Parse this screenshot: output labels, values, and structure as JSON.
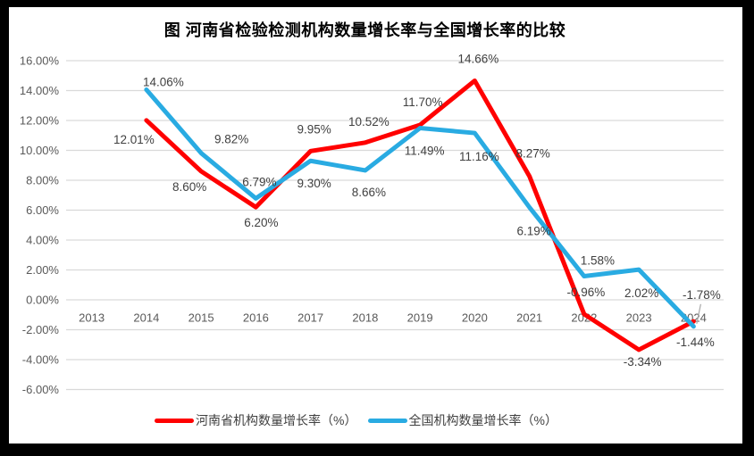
{
  "title": "图  河南省检验检测机构数量增长率与全国增长率的比较",
  "chart_data": {
    "type": "line",
    "title": "图  河南省检验检测机构数量增长率与全国增长率的比较",
    "categories": [
      "2013",
      "2014",
      "2015",
      "2016",
      "2017",
      "2018",
      "2019",
      "2020",
      "2021",
      "2022",
      "2023",
      "2024"
    ],
    "series": [
      {
        "name": "河南省机构数量增长率（%）",
        "color": "#FF0000",
        "values": [
          null,
          12.01,
          8.6,
          6.2,
          9.95,
          10.52,
          11.7,
          14.66,
          8.27,
          -0.96,
          -3.34,
          -1.44
        ],
        "labels": [
          "",
          "12.01%",
          "8.60%",
          "6.20%",
          "9.95%",
          "10.52%",
          "11.70%",
          "14.66%",
          "8.27%",
          "-0.96%",
          "-3.34%",
          "-1.44%"
        ]
      },
      {
        "name": "全国机构数量增长率（%）",
        "color": "#29ABE2",
        "values": [
          null,
          14.06,
          9.82,
          6.79,
          9.3,
          8.66,
          11.49,
          11.16,
          6.19,
          1.58,
          2.02,
          -1.78
        ],
        "labels": [
          "",
          "14.06%",
          "9.82%",
          "6.79%",
          "9.30%",
          "8.66%",
          "11.49%",
          "11.16%",
          "6.19%",
          "1.58%",
          "2.02%",
          "-1.78%"
        ]
      }
    ],
    "yticks": [
      {
        "value": 16,
        "label": "16.00%"
      },
      {
        "value": 14,
        "label": "14.00%"
      },
      {
        "value": 12,
        "label": "12.00%"
      },
      {
        "value": 10,
        "label": "10.00%"
      },
      {
        "value": 8,
        "label": "8.00%"
      },
      {
        "value": 6,
        "label": "6.00%"
      },
      {
        "value": 4,
        "label": "4.00%"
      },
      {
        "value": 2,
        "label": "2.00%"
      },
      {
        "value": 0,
        "label": "0.00%"
      },
      {
        "value": -2,
        "label": "-2.00%"
      },
      {
        "value": -4,
        "label": "-4.00%"
      },
      {
        "value": -6,
        "label": "-6.00%"
      }
    ],
    "ylim": [
      -6,
      16
    ],
    "grid": true,
    "legend_position": "bottom",
    "colors": {
      "gridline": "#D9D9D9",
      "axis_text": "#595959",
      "data_label": "#404040",
      "leader_line": "#A6A6A6",
      "background": "#FFFFFF",
      "frame": "#000000"
    }
  }
}
